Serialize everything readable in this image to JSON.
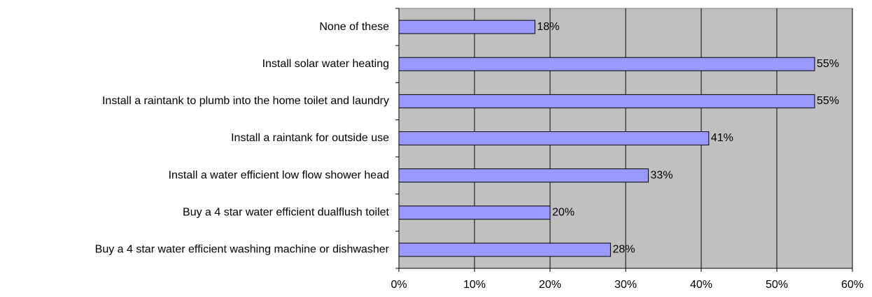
{
  "chart_data": {
    "type": "bar",
    "orientation": "horizontal",
    "categories": [
      "None of these",
      "Install solar water heating",
      "Install a raintank to plumb into the home toilet and laundry",
      "Install a raintank for outside use",
      "Install a water efficient low flow shower head",
      "Buy a 4 star water efficient dualflush toilet",
      "Buy a 4 star water efficient washing machine or dishwasher"
    ],
    "values": [
      18,
      55,
      55,
      41,
      33,
      20,
      28
    ],
    "value_labels": [
      "18%",
      "55%",
      "55%",
      "41%",
      "33%",
      "20%",
      "28%"
    ],
    "color": "#9999ff",
    "xlim": [
      0,
      60
    ],
    "xticks": [
      {
        "value": 0,
        "label": "0%"
      },
      {
        "value": 10,
        "label": "10%"
      },
      {
        "value": 20,
        "label": "20%"
      },
      {
        "value": 30,
        "label": "30%"
      },
      {
        "value": 40,
        "label": "40%"
      },
      {
        "value": 50,
        "label": "50%"
      },
      {
        "value": 60,
        "label": "60%"
      }
    ],
    "grid": true
  }
}
